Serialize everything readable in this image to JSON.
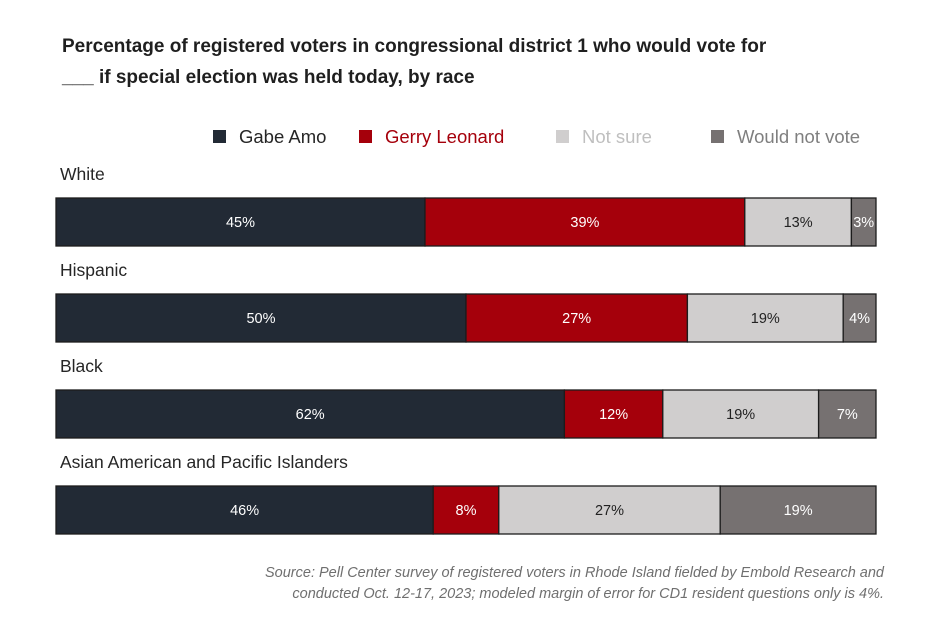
{
  "chart_data": {
    "type": "bar",
    "orientation": "horizontal",
    "stacked": true,
    "title": "Percentage of registered voters in congressional district 1 who would vote for ___ if special election was held today, by race",
    "title_lines": [
      "Percentage of registered voters in congressional district 1 who would vote for",
      "___ if special election was held today, by race"
    ],
    "categories": [
      "White",
      "Hispanic",
      "Black",
      "Asian American and Pacific Islanders"
    ],
    "series": [
      {
        "name": "Gabe Amo",
        "color": "#222a35",
        "label_color": "#ffffff",
        "values": [
          45,
          50,
          62,
          46
        ]
      },
      {
        "name": "Gerry Leonard",
        "color": "#a5000b",
        "label_color": "#ffffff",
        "values": [
          39,
          27,
          12,
          8
        ]
      },
      {
        "name": "Not sure",
        "color": "#d0cece",
        "label_color": "#222222",
        "values": [
          13,
          19,
          19,
          27
        ]
      },
      {
        "name": "Would not vote",
        "color": "#767171",
        "label_color": "#ffffff",
        "values": [
          3,
          4,
          7,
          19
        ]
      }
    ],
    "legend_text_colors": [
      "#262626",
      "#a5000b",
      "#bfbfbf",
      "#7f7f7f"
    ],
    "value_suffix": "%",
    "legend_position": "top-right",
    "grid": false,
    "source_lines": [
      "Source: Pell Center survey of registered voters in Rhode Island fielded by Embold Research and",
      "conducted Oct. 12-17, 2023; modeled margin of error for CD1 resident questions only is 4%."
    ]
  }
}
